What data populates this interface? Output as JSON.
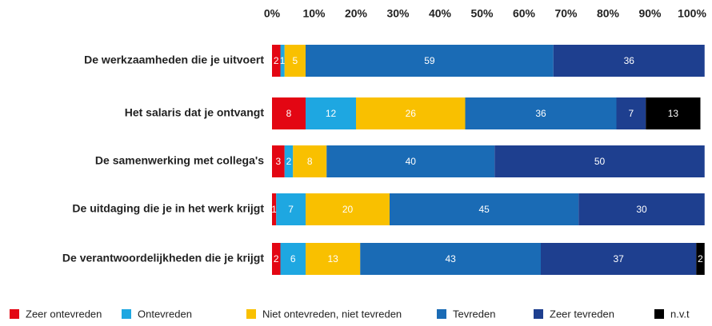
{
  "chart_data": {
    "type": "stacked-bar-horizontal",
    "categories": [
      "De werkzaamheden die je uitvoert",
      "Het salaris dat je ontvangt",
      "De samenwerking met collega's",
      "De uitdaging die je in het werk krijgt",
      "De verantwoordelijkheden die je krijgt"
    ],
    "series": [
      {
        "name": "Zeer ontevreden",
        "color": "#e30613",
        "values": [
          2,
          8,
          3,
          1,
          2
        ]
      },
      {
        "name": "Ontevreden",
        "color": "#1ea7e1",
        "values": [
          1,
          12,
          2,
          7,
          6
        ]
      },
      {
        "name": "Niet ontevreden, niet tevreden",
        "color": "#f9c000",
        "values": [
          5,
          26,
          8,
          20,
          13
        ]
      },
      {
        "name": "Tevreden",
        "color": "#1a6bb5",
        "values": [
          59,
          36,
          40,
          45,
          43
        ]
      },
      {
        "name": "Zeer tevreden",
        "color": "#1e3f8f",
        "values": [
          36,
          7,
          50,
          30,
          37
        ]
      },
      {
        "name": "n.v.t",
        "color": "#000000",
        "values": [
          null,
          13,
          null,
          null,
          2
        ]
      }
    ],
    "xlim": [
      0,
      100
    ],
    "xticks": [
      {
        "value": 0,
        "label": "0%"
      },
      {
        "value": 10,
        "label": "10%"
      },
      {
        "value": 20,
        "label": "20%"
      },
      {
        "value": 30,
        "label": "30%"
      },
      {
        "value": 40,
        "label": "40%"
      },
      {
        "value": 50,
        "label": "50%"
      },
      {
        "value": 60,
        "label": "60%"
      },
      {
        "value": 70,
        "label": "70%"
      },
      {
        "value": 80,
        "label": "80%"
      },
      {
        "value": 90,
        "label": "90%"
      },
      {
        "value": 100,
        "label": "100%"
      }
    ]
  }
}
